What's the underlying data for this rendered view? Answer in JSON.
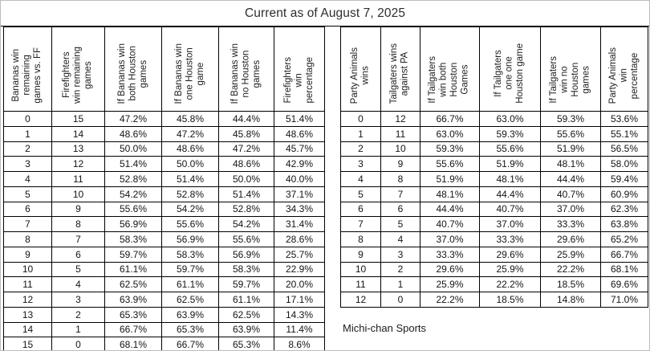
{
  "title": "Current as of August 7, 2025",
  "credit": "Michi-chan Sports",
  "chart_data": [
    {
      "type": "table",
      "name": "bananas-firefighters-scenarios",
      "columns": [
        "Bananas win\nremaining\ngames vs. FF",
        "Firefighters\nwin remaining\ngames",
        "If Bananas win\nboth Houston\ngames",
        "If Bananas win\none Houston\ngame",
        "If Bananas win\nno Houston\ngames",
        "Firefighters\nwin\npercentage"
      ],
      "rows": [
        [
          "0",
          "15",
          "47.2%",
          "45.8%",
          "44.4%",
          "51.4%"
        ],
        [
          "1",
          "14",
          "48.6%",
          "47.2%",
          "45.8%",
          "48.6%"
        ],
        [
          "2",
          "13",
          "50.0%",
          "48.6%",
          "47.2%",
          "45.7%"
        ],
        [
          "3",
          "12",
          "51.4%",
          "50.0%",
          "48.6%",
          "42.9%"
        ],
        [
          "4",
          "11",
          "52.8%",
          "51.4%",
          "50.0%",
          "40.0%"
        ],
        [
          "5",
          "10",
          "54.2%",
          "52.8%",
          "51.4%",
          "37.1%"
        ],
        [
          "6",
          "9",
          "55.6%",
          "54.2%",
          "52.8%",
          "34.3%"
        ],
        [
          "7",
          "8",
          "56.9%",
          "55.6%",
          "54.2%",
          "31.4%"
        ],
        [
          "8",
          "7",
          "58.3%",
          "56.9%",
          "55.6%",
          "28.6%"
        ],
        [
          "9",
          "6",
          "59.7%",
          "58.3%",
          "56.9%",
          "25.7%"
        ],
        [
          "10",
          "5",
          "61.1%",
          "59.7%",
          "58.3%",
          "22.9%"
        ],
        [
          "11",
          "4",
          "62.5%",
          "61.1%",
          "59.7%",
          "20.0%"
        ],
        [
          "12",
          "3",
          "63.9%",
          "62.5%",
          "61.1%",
          "17.1%"
        ],
        [
          "13",
          "2",
          "65.3%",
          "63.9%",
          "62.5%",
          "14.3%"
        ],
        [
          "14",
          "1",
          "66.7%",
          "65.3%",
          "63.9%",
          "11.4%"
        ],
        [
          "15",
          "0",
          "68.1%",
          "66.7%",
          "65.3%",
          "8.6%"
        ]
      ]
    },
    {
      "type": "table",
      "name": "party-animals-tailgaters-scenarios",
      "columns": [
        "Party Animals\nwins",
        "Tailgaters wins\nagainst PA",
        "If Tailgaters\nwin both\nHouston\nGames",
        "If Tailgaters\none one\nHouston game",
        "If Tailgaters\nwin no\nHouston\ngames",
        "Party Animals\nwin\npercentage"
      ],
      "rows": [
        [
          "0",
          "12",
          "66.7%",
          "63.0%",
          "59.3%",
          "53.6%"
        ],
        [
          "1",
          "11",
          "63.0%",
          "59.3%",
          "55.6%",
          "55.1%"
        ],
        [
          "2",
          "10",
          "59.3%",
          "55.6%",
          "51.9%",
          "56.5%"
        ],
        [
          "3",
          "9",
          "55.6%",
          "51.9%",
          "48.1%",
          "58.0%"
        ],
        [
          "4",
          "8",
          "51.9%",
          "48.1%",
          "44.4%",
          "59.4%"
        ],
        [
          "5",
          "7",
          "48.1%",
          "44.4%",
          "40.7%",
          "60.9%"
        ],
        [
          "6",
          "6",
          "44.4%",
          "40.7%",
          "37.0%",
          "62.3%"
        ],
        [
          "7",
          "5",
          "40.7%",
          "37.0%",
          "33.3%",
          "63.8%"
        ],
        [
          "8",
          "4",
          "37.0%",
          "33.3%",
          "29.6%",
          "65.2%"
        ],
        [
          "9",
          "3",
          "33.3%",
          "29.6%",
          "25.9%",
          "66.7%"
        ],
        [
          "10",
          "2",
          "29.6%",
          "25.9%",
          "22.2%",
          "68.1%"
        ],
        [
          "11",
          "1",
          "25.9%",
          "22.2%",
          "18.5%",
          "69.6%"
        ],
        [
          "12",
          "0",
          "22.2%",
          "18.5%",
          "14.8%",
          "71.0%"
        ]
      ]
    }
  ]
}
